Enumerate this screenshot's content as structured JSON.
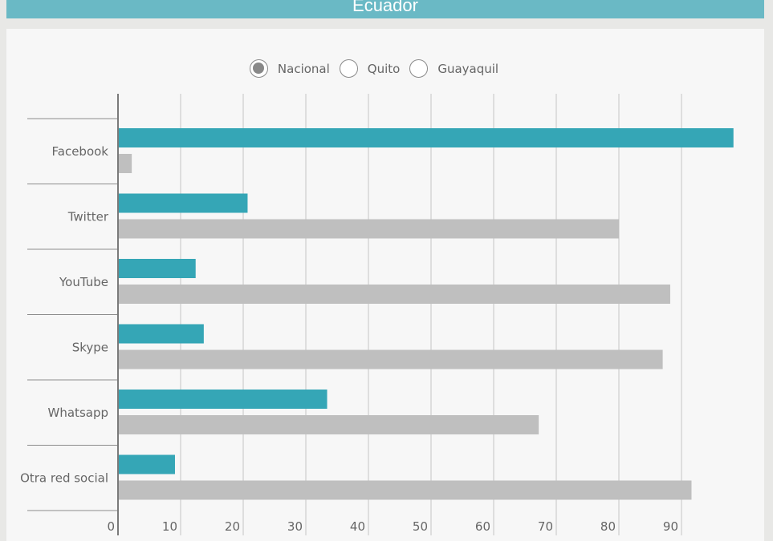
{
  "header": {
    "title": "Ecuador"
  },
  "radios": [
    {
      "label": "Nacional",
      "selected": true
    },
    {
      "label": "Quito",
      "selected": false
    },
    {
      "label": "Guayaquil",
      "selected": false
    }
  ],
  "colors": {
    "primary": "#35a6b6",
    "secondary": "#bfbfbf",
    "header": "#6ab9c5"
  },
  "chart_data": {
    "type": "bar",
    "orientation": "horizontal",
    "categories": [
      "Facebook",
      "Twitter",
      "YouTube",
      "Skype",
      "Whatsapp",
      "Otra red social"
    ],
    "series": [
      {
        "values": [
          98.3,
          20.7,
          12.4,
          13.7,
          33.4,
          9.1
        ]
      },
      {
        "values": [
          2.2,
          80.0,
          88.2,
          87.0,
          67.2,
          91.6
        ]
      }
    ],
    "xlim": [
      0,
      100
    ],
    "xticks": [
      0,
      10,
      20,
      30,
      40,
      50,
      60,
      70,
      80,
      90
    ],
    "grid": true
  }
}
